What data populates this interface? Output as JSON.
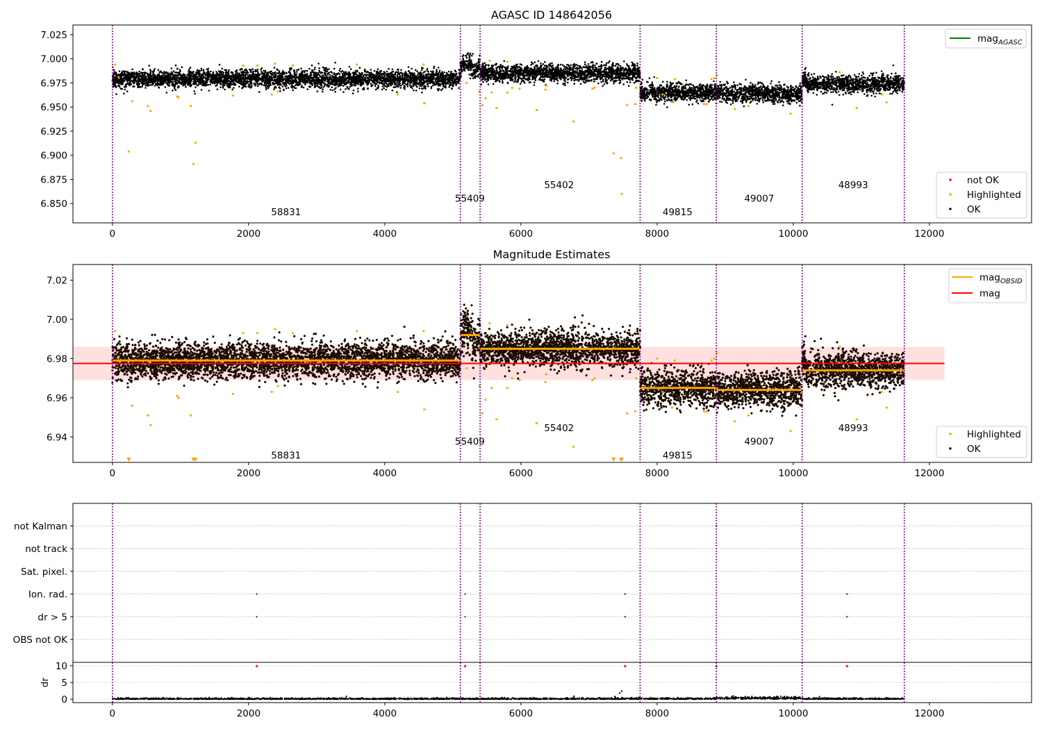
{
  "figure": {
    "background": "#ffffff"
  },
  "chart_data": [
    {
      "id": "top",
      "type": "scatter",
      "title": "AGASC ID 148642056",
      "xlim": [
        -580,
        13500
      ],
      "ylim": [
        6.83,
        7.035
      ],
      "xticks": [
        0,
        2000,
        4000,
        6000,
        8000,
        10000,
        12000
      ],
      "yticks": [
        6.85,
        6.875,
        6.9,
        6.925,
        6.95,
        6.975,
        7.0,
        7.025
      ],
      "ytick_labels": [
        "6.850",
        "6.875",
        "6.900",
        "6.925",
        "6.950",
        "6.975",
        "7.000",
        "7.025"
      ],
      "legends": [
        {
          "position": "top-right",
          "entries": [
            {
              "label": "mag",
              "sub": "AGASC",
              "color": "#008000",
              "marker": "line"
            }
          ]
        },
        {
          "position": "lower-right",
          "entries": [
            {
              "label": "not OK",
              "color": "#ff0000",
              "marker": "dot"
            },
            {
              "label": "Highlighted",
              "color": "#ffa500",
              "marker": "dot"
            },
            {
              "label": "OK",
              "color": "#000000",
              "marker": "dot"
            }
          ]
        }
      ],
      "obsid_labels": [
        {
          "text": "58831",
          "x": 2550,
          "y": 6.838
        },
        {
          "text": "55409",
          "x": 5250,
          "y": 6.852
        },
        {
          "text": "55402",
          "x": 6560,
          "y": 6.866
        },
        {
          "text": "49815",
          "x": 8300,
          "y": 6.838
        },
        {
          "text": "49007",
          "x": 9500,
          "y": 6.852
        },
        {
          "text": "48993",
          "x": 10880,
          "y": 6.866
        }
      ],
      "highlighted_points": [
        [
          40,
          6.994
        ],
        [
          90,
          6.981
        ],
        [
          240,
          6.904
        ],
        [
          290,
          6.956
        ],
        [
          520,
          6.951
        ],
        [
          560,
          6.946
        ],
        [
          950,
          6.961
        ],
        [
          970,
          6.96
        ],
        [
          1150,
          6.951
        ],
        [
          1190,
          6.891
        ],
        [
          1220,
          6.913
        ],
        [
          1770,
          6.962
        ],
        [
          1920,
          6.993
        ],
        [
          2130,
          6.993
        ],
        [
          2340,
          6.963
        ],
        [
          2390,
          6.995
        ],
        [
          2430,
          6.966
        ],
        [
          2650,
          6.993
        ],
        [
          3590,
          6.994
        ],
        [
          4190,
          6.963
        ],
        [
          4580,
          6.954
        ],
        [
          4570,
          6.994
        ],
        [
          5200,
          6.975
        ],
        [
          5390,
          6.966
        ],
        [
          5430,
          6.952
        ],
        [
          5480,
          6.959
        ],
        [
          5540,
          6.998
        ],
        [
          5570,
          6.965
        ],
        [
          5640,
          6.949
        ],
        [
          5800,
          6.997
        ],
        [
          5800,
          6.965
        ],
        [
          5870,
          6.97
        ],
        [
          5980,
          6.969
        ],
        [
          6230,
          6.947
        ],
        [
          6360,
          6.968
        ],
        [
          6370,
          6.972
        ],
        [
          6770,
          6.935
        ],
        [
          7050,
          6.969
        ],
        [
          7080,
          6.97
        ],
        [
          7360,
          6.902
        ],
        [
          7470,
          6.897
        ],
        [
          7480,
          6.86
        ],
        [
          7560,
          6.952
        ],
        [
          7680,
          6.953
        ],
        [
          7690,
          6.97
        ],
        [
          8000,
          6.98
        ],
        [
          8080,
          6.963
        ],
        [
          8220,
          6.955
        ],
        [
          8260,
          6.979
        ],
        [
          8300,
          6.97
        ],
        [
          8690,
          6.953
        ],
        [
          8730,
          6.953
        ],
        [
          8800,
          6.979
        ],
        [
          8840,
          6.98
        ],
        [
          8880,
          6.983
        ],
        [
          9140,
          6.948
        ],
        [
          9340,
          6.951
        ],
        [
          9960,
          6.943
        ],
        [
          10680,
          6.986
        ],
        [
          10930,
          6.949
        ],
        [
          11300,
          6.963
        ],
        [
          11370,
          6.955
        ]
      ],
      "not_ok_points": [],
      "segments": [
        {
          "obsid": "58831",
          "x0": 0,
          "x1": 5110,
          "mean": 6.979,
          "sigma": 0.0045
        },
        {
          "obsid": "55409",
          "x0": 5110,
          "x1": 5400,
          "mean": 6.992,
          "sigma": 0.0055
        },
        {
          "obsid": "55402",
          "x0": 5400,
          "x1": 7750,
          "mean": 6.985,
          "sigma": 0.0045
        },
        {
          "obsid": "49815",
          "x0": 7750,
          "x1": 8870,
          "mean": 6.965,
          "sigma": 0.0045
        },
        {
          "obsid": "49007",
          "x0": 8870,
          "x1": 10130,
          "mean": 6.964,
          "sigma": 0.0045
        },
        {
          "obsid": "48993",
          "x0": 10130,
          "x1": 11630,
          "mean": 6.974,
          "sigma": 0.0045
        }
      ],
      "obsid_boundaries": [
        0,
        5110,
        5400,
        7750,
        8870,
        10130,
        11630
      ]
    },
    {
      "id": "middle",
      "type": "scatter",
      "title": "Magnitude Estimates",
      "xlim": [
        -580,
        13500
      ],
      "ylim": [
        6.927,
        7.028
      ],
      "xticks": [
        0,
        2000,
        4000,
        6000,
        8000,
        10000,
        12000
      ],
      "yticks": [
        6.94,
        6.96,
        6.98,
        7.0,
        7.02
      ],
      "ytick_labels": [
        "6.94",
        "6.96",
        "6.98",
        "7.00",
        "7.02"
      ],
      "mag_line": {
        "value": 6.9775,
        "band": [
          6.969,
          6.986
        ],
        "x0": -580,
        "x1": 12220,
        "color": "#ff0000"
      },
      "obsid_mag_color": "#ffa500",
      "legends": [
        {
          "position": "top-right",
          "entries": [
            {
              "label": "mag",
              "sub": "OBSID",
              "color": "#ffa500",
              "marker": "line"
            },
            {
              "label": "mag",
              "color": "#ff0000",
              "marker": "line"
            }
          ]
        },
        {
          "position": "lower-right",
          "entries": [
            {
              "label": "Highlighted",
              "color": "#ffa500",
              "marker": "dot"
            },
            {
              "label": "OK",
              "color": "#000000",
              "marker": "dot"
            }
          ]
        }
      ],
      "obsid_labels": [
        {
          "text": "58831",
          "x": 2550,
          "y": 6.929
        },
        {
          "text": "55409",
          "x": 5250,
          "y": 6.936
        },
        {
          "text": "55402",
          "x": 6560,
          "y": 6.943
        },
        {
          "text": "49815",
          "x": 8300,
          "y": 6.929
        },
        {
          "text": "49007",
          "x": 9500,
          "y": 6.936
        },
        {
          "text": "48993",
          "x": 10880,
          "y": 6.943
        }
      ],
      "out_of_range_x": [
        240,
        1190,
        1220,
        7360,
        7470,
        7480
      ]
    },
    {
      "id": "flags",
      "type": "scatter",
      "xlim": [
        -580,
        13500
      ],
      "categories": [
        "OBS not OK",
        "dr > 5",
        "Ion. rad.",
        "Sat. pixel.",
        "not track",
        "not Kalman"
      ],
      "points": [
        {
          "category": "Ion. rad.",
          "x": [
            2120,
            5180,
            7530,
            10790
          ]
        },
        {
          "category": "dr > 5",
          "x": [
            2120,
            5180,
            7530,
            10790
          ]
        },
        {
          "category": "not Kalman",
          "x": [
            8870
          ]
        }
      ]
    },
    {
      "id": "dr",
      "type": "scatter",
      "ylabel": "dr",
      "xlim": [
        -580,
        13500
      ],
      "ylim": [
        -1,
        11
      ],
      "xticks": [
        0,
        2000,
        4000,
        6000,
        8000,
        10000,
        12000
      ],
      "yticks": [
        0,
        5,
        10
      ],
      "clipped_points_x": [
        2120,
        5180,
        7530,
        8870,
        10790
      ],
      "clip_value": 10,
      "spikes": [
        [
          6780,
          0.9
        ],
        [
          7380,
          0.8
        ],
        [
          7450,
          1.8
        ],
        [
          7480,
          2.4
        ]
      ]
    }
  ]
}
